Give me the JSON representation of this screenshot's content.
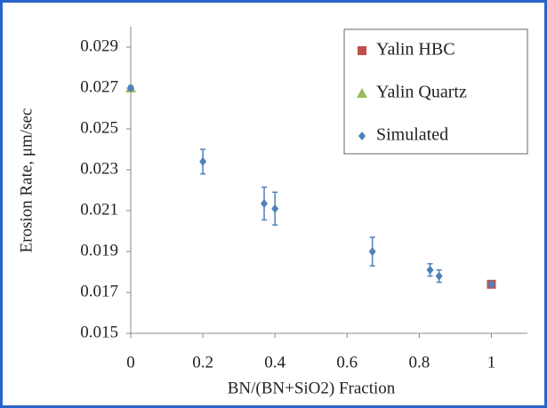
{
  "chart_data": {
    "type": "scatter",
    "x_label": "BN/(BN+SiO2) Fraction",
    "y_label": "Erosion Rate, μm/sec",
    "xlim": [
      0,
      1.1
    ],
    "xticks": [
      0,
      0.2,
      0.4,
      0.6,
      0.8,
      1
    ],
    "ylim": [
      0.015,
      0.03
    ],
    "yticks": [
      0.015,
      0.017,
      0.019,
      0.021,
      0.023,
      0.025,
      0.027,
      0.029
    ],
    "grid": false,
    "legend": "upper right",
    "series": [
      {
        "name": "Yalin HBC",
        "color": "#c0504d",
        "marker": "square",
        "x": [
          1
        ],
        "values": [
          0.0174
        ]
      },
      {
        "name": "Yalin Quartz",
        "color": "#9bbb59",
        "marker": "triangle",
        "x": [
          0
        ],
        "values": [
          0.027
        ]
      },
      {
        "name": "Simulated",
        "color": "#4f81bd",
        "marker": "diamond",
        "x": [
          0,
          0.2,
          0.37,
          0.4,
          0.67,
          0.83,
          0.855,
          1
        ],
        "values": [
          0.027,
          0.0234,
          0.02135,
          0.0211,
          0.019,
          0.0181,
          0.0178,
          0.0174
        ],
        "errors": [
          0.0001,
          0.0006,
          0.0008,
          0.0008,
          0.0007,
          0.0003,
          0.0003,
          0.0001
        ]
      }
    ]
  }
}
